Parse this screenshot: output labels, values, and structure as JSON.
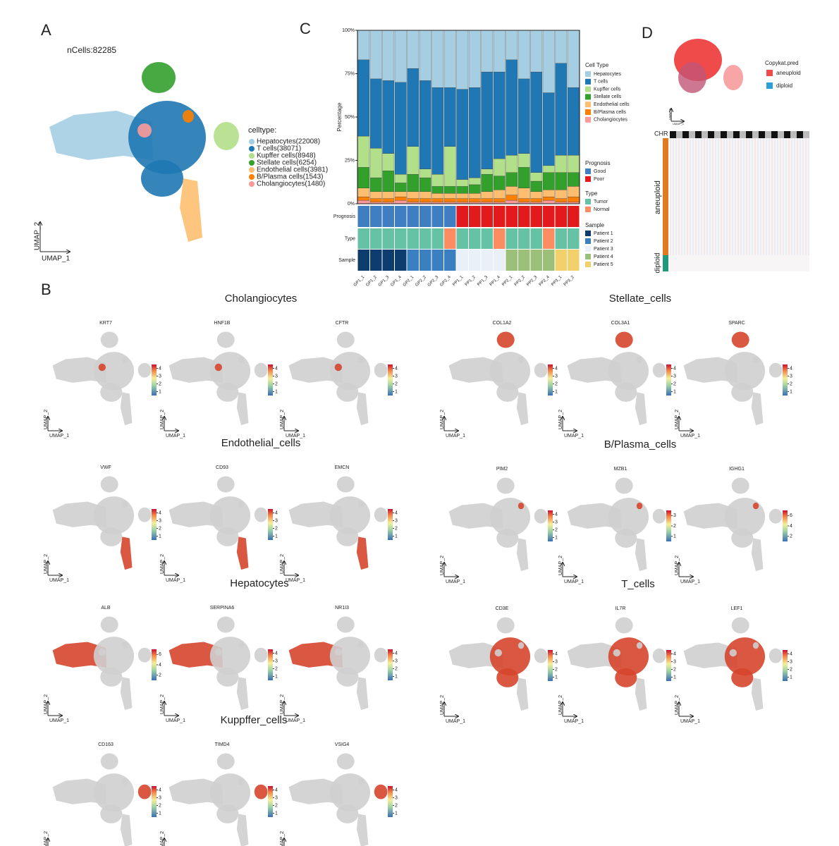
{
  "panel_labels": [
    "A",
    "B",
    "C",
    "D"
  ],
  "umap_axis": {
    "x": "UMAP_1",
    "y": "UMAP_2"
  },
  "panel_a": {
    "title": "nCells:82285",
    "legend_title": "celltype:",
    "entries": [
      {
        "name": "Hepatocytes(22008)",
        "color": "#a6cee3"
      },
      {
        "name": "T cells(38071)",
        "color": "#1f78b4"
      },
      {
        "name": "Kupffer cells(8948)",
        "color": "#b2df8a"
      },
      {
        "name": "Stellate cells(6254)",
        "color": "#33a02c"
      },
      {
        "name": "Endothelial cells(3981)",
        "color": "#fdbf6f"
      },
      {
        "name": "B/Plasma cells(1543)",
        "color": "#ff7f00"
      },
      {
        "name": "Cholangiocytes(1480)",
        "color": "#fb9a99"
      }
    ]
  },
  "chart_data": {
    "type": "stacked_bar",
    "y_label": "Percentage",
    "legend_title": "Cell Type",
    "categories": [
      "GP1_1",
      "GP1_2",
      "GP1_3",
      "GP1_4",
      "GP2_1",
      "GP2_2",
      "GP2_3",
      "GP2_4",
      "PP1_1",
      "PP1_2",
      "PP1_3",
      "PP1_4",
      "PP2_1",
      "PP2_2",
      "PP2_3",
      "PP2_4",
      "PP3_1",
      "PP3_2"
    ],
    "series": [
      {
        "name": "Cholangiocytes",
        "color": "#fb9a99",
        "values": [
          2,
          1,
          1,
          2,
          1,
          1,
          1,
          1,
          1,
          1,
          1,
          1,
          2,
          1,
          1,
          2,
          1,
          1
        ]
      },
      {
        "name": "B/Plasma cells",
        "color": "#ff7f00",
        "values": [
          2,
          2,
          2,
          2,
          2,
          2,
          2,
          2,
          2,
          2,
          2,
          2,
          3,
          2,
          2,
          2,
          2,
          3
        ]
      },
      {
        "name": "Endothelial cells",
        "color": "#fdbf6f",
        "values": [
          5,
          4,
          4,
          3,
          4,
          4,
          3,
          3,
          3,
          3,
          4,
          5,
          5,
          6,
          4,
          4,
          5,
          6
        ]
      },
      {
        "name": "Stellate cells",
        "color": "#33a02c",
        "values": [
          12,
          8,
          12,
          5,
          10,
          8,
          4,
          4,
          4,
          5,
          10,
          8,
          8,
          12,
          6,
          10,
          10,
          8
        ]
      },
      {
        "name": "Kupffer cells",
        "color": "#b2df8a",
        "values": [
          18,
          17,
          10,
          5,
          16,
          5,
          7,
          23,
          4,
          4,
          3,
          10,
          10,
          8,
          5,
          4,
          10,
          10
        ]
      },
      {
        "name": "T cells",
        "color": "#1f78b4",
        "values": [
          44,
          40,
          42,
          53,
          45,
          51,
          50,
          34,
          52,
          52,
          56,
          50,
          55,
          43,
          58,
          42,
          53,
          39
        ]
      },
      {
        "name": "Hepatocytes",
        "color": "#a6cee3",
        "values": [
          17,
          28,
          29,
          30,
          22,
          29,
          33,
          33,
          34,
          33,
          24,
          24,
          17,
          28,
          24,
          36,
          19,
          33
        ]
      }
    ],
    "ylim": [
      0,
      100
    ],
    "yticks": [
      {
        "value": 0,
        "label": "0%"
      },
      {
        "value": 25,
        "label": "25%"
      },
      {
        "value": 50,
        "label": "50%"
      },
      {
        "value": 75,
        "label": "75%"
      },
      {
        "value": 100,
        "label": "100%"
      }
    ],
    "annotations": [
      {
        "name": "Prognosis",
        "levels": [
          {
            "name": "Good",
            "color": "#3f7fc1"
          },
          {
            "name": "Poor",
            "color": "#e31a1c"
          }
        ],
        "values": [
          0,
          0,
          0,
          0,
          0,
          0,
          0,
          0,
          1,
          1,
          1,
          1,
          1,
          1,
          1,
          1,
          1,
          1
        ]
      },
      {
        "name": "Type",
        "levels": [
          {
            "name": "Tumor",
            "color": "#66c2a5"
          },
          {
            "name": "Normal",
            "color": "#fc8d62"
          }
        ],
        "values": [
          0,
          0,
          0,
          0,
          0,
          0,
          0,
          1,
          0,
          0,
          0,
          1,
          0,
          0,
          0,
          1,
          0,
          0
        ]
      },
      {
        "name": "Sample",
        "levels": [
          {
            "name": "Patient 1",
            "color": "#0d3d6e"
          },
          {
            "name": "Patient 2",
            "color": "#3a7fc0"
          },
          {
            "name": "Patient 3",
            "color": "#eaf0f8"
          },
          {
            "name": "Patient 4",
            "color": "#9cc07a"
          },
          {
            "name": "Patient 5",
            "color": "#f2d06b"
          }
        ],
        "values": [
          0,
          0,
          0,
          0,
          1,
          1,
          1,
          1,
          2,
          2,
          2,
          2,
          3,
          3,
          3,
          3,
          4,
          4
        ]
      }
    ]
  },
  "panel_d": {
    "legend_title": "Copykat.pred",
    "entries": [
      {
        "name": "aneuploid",
        "color": "#ef4b4b"
      },
      {
        "name": "diploid",
        "color": "#2a9fd8"
      }
    ],
    "chr_label": "CHR",
    "row_labels": [
      "aneuploid",
      "diploid"
    ]
  },
  "panel_b": [
    {
      "title": "Cholangiocytes",
      "genes": [
        {
          "name": "KRT7",
          "lim": [
            0.5,
            4.5
          ],
          "ticks": [
            1,
            2,
            3,
            4
          ]
        },
        {
          "name": "HNF1B",
          "lim": [
            0.5,
            4.5
          ],
          "ticks": [
            1,
            2,
            3,
            4
          ]
        },
        {
          "name": "CFTR",
          "lim": [
            0.5,
            4.5
          ],
          "ticks": [
            1,
            2,
            3,
            4
          ]
        }
      ]
    },
    {
      "title": "Stellate_cells",
      "genes": [
        {
          "name": "COL1A2",
          "lim": [
            0.5,
            4.5
          ],
          "ticks": [
            1,
            2,
            3,
            4
          ]
        },
        {
          "name": "COL3A1",
          "lim": [
            0.5,
            4.5
          ],
          "ticks": [
            1,
            2,
            3,
            4
          ]
        },
        {
          "name": "SPARC",
          "lim": [
            0.5,
            4.5
          ],
          "ticks": [
            1,
            2,
            3,
            4
          ]
        }
      ]
    },
    {
      "title": "Endothelial_cells",
      "genes": [
        {
          "name": "VWF",
          "lim": [
            0.5,
            4.5
          ],
          "ticks": [
            1,
            2,
            3,
            4
          ]
        },
        {
          "name": "CD93",
          "lim": [
            0.5,
            4.5
          ],
          "ticks": [
            1,
            2,
            3,
            4
          ]
        },
        {
          "name": "EMCN",
          "lim": [
            0.5,
            4.5
          ],
          "ticks": [
            1,
            2,
            3,
            4
          ]
        }
      ]
    },
    {
      "title": "B/Plasma_cells",
      "genes": [
        {
          "name": "PIM2",
          "lim": [
            0.5,
            4.5
          ],
          "ticks": [
            1,
            2,
            3,
            4
          ]
        },
        {
          "name": "MZB1",
          "lim": [
            0.5,
            3.5
          ],
          "ticks": [
            1,
            2,
            3
          ]
        },
        {
          "name": "IGHG1",
          "lim": [
            1,
            7
          ],
          "ticks": [
            2,
            4,
            6
          ]
        }
      ]
    },
    {
      "title": "Hepatocytes",
      "genes": [
        {
          "name": "ALB",
          "lim": [
            1,
            7
          ],
          "ticks": [
            2,
            4,
            6
          ]
        },
        {
          "name": "SERPINA6",
          "lim": [
            0.5,
            4.5
          ],
          "ticks": [
            1,
            2,
            3,
            4
          ]
        },
        {
          "name": "NR1I3",
          "lim": [
            0.5,
            4.5
          ],
          "ticks": [
            1,
            2,
            3,
            4
          ]
        }
      ]
    },
    {
      "title": "T_cells",
      "genes": [
        {
          "name": "CD3E",
          "lim": [
            0.5,
            4.5
          ],
          "ticks": [
            1,
            2,
            3,
            4
          ]
        },
        {
          "name": "IL7R",
          "lim": [
            0.5,
            4.5
          ],
          "ticks": [
            1,
            2,
            3,
            4
          ]
        },
        {
          "name": "LEF1",
          "lim": [
            0.5,
            4.5
          ],
          "ticks": [
            1,
            2,
            3,
            4
          ]
        }
      ]
    },
    {
      "title": "Kuppffer_cells",
      "genes": [
        {
          "name": "CD163",
          "lim": [
            0.5,
            4.5
          ],
          "ticks": [
            1,
            2,
            3,
            4
          ]
        },
        {
          "name": "TIMD4",
          "lim": [
            0.5,
            4.5
          ],
          "ticks": [
            1,
            2,
            3,
            4
          ]
        },
        {
          "name": "VSIG4",
          "lim": [
            0.5,
            4.5
          ],
          "ticks": [
            1,
            2,
            3,
            4
          ]
        }
      ]
    }
  ]
}
